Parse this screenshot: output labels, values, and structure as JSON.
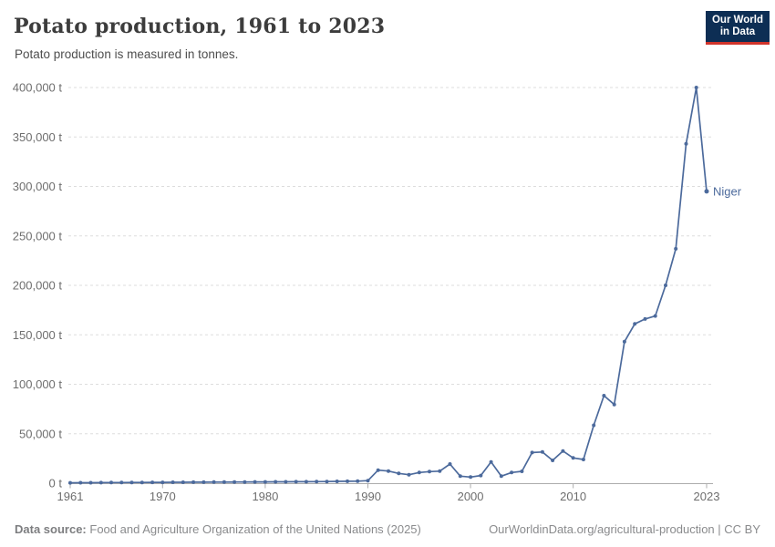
{
  "header": {
    "title": "Potato production, 1961 to 2023",
    "subtitle": "Potato production is measured in tonnes.",
    "logo": {
      "line1": "Our World",
      "line2": "in Data",
      "bg_color": "#0d2e54",
      "accent_color": "#d1342b"
    }
  },
  "chart_data": {
    "type": "line",
    "title": "Potato production, 1961 to 2023",
    "unit": "tonnes",
    "xlabel": "",
    "ylabel": "",
    "xlim": [
      1961,
      2023
    ],
    "ylim": [
      0,
      400000
    ],
    "grid": "horizontal-dashed",
    "legend_position": "end-of-line-label",
    "x_ticks": [
      {
        "value": 1961,
        "label": "1961"
      },
      {
        "value": 1970,
        "label": "1970"
      },
      {
        "value": 1980,
        "label": "1980"
      },
      {
        "value": 1990,
        "label": "1990"
      },
      {
        "value": 2000,
        "label": "2000"
      },
      {
        "value": 2010,
        "label": "2010"
      },
      {
        "value": 2023,
        "label": "2023"
      }
    ],
    "y_ticks": [
      {
        "value": 0,
        "label": "0 t"
      },
      {
        "value": 50000,
        "label": "50,000 t"
      },
      {
        "value": 100000,
        "label": "100,000 t"
      },
      {
        "value": 150000,
        "label": "150,000 t"
      },
      {
        "value": 200000,
        "label": "200,000 t"
      },
      {
        "value": 250000,
        "label": "250,000 t"
      },
      {
        "value": 300000,
        "label": "300,000 t"
      },
      {
        "value": 350000,
        "label": "350,000 t"
      },
      {
        "value": 400000,
        "label": "400,000 t"
      }
    ],
    "series": [
      {
        "name": "Niger",
        "color": "#4C6A9C",
        "x": [
          1961,
          1962,
          1963,
          1964,
          1965,
          1966,
          1967,
          1968,
          1969,
          1970,
          1971,
          1972,
          1973,
          1974,
          1975,
          1976,
          1977,
          1978,
          1979,
          1980,
          1981,
          1982,
          1983,
          1984,
          1985,
          1986,
          1987,
          1988,
          1989,
          1990,
          1991,
          1992,
          1993,
          1994,
          1995,
          1996,
          1997,
          1998,
          1999,
          2000,
          2001,
          2002,
          2003,
          2004,
          2005,
          2006,
          2007,
          2008,
          2009,
          2010,
          2011,
          2012,
          2013,
          2014,
          2015,
          2016,
          2017,
          2018,
          2019,
          2020,
          2021,
          2022,
          2023
        ],
        "values": [
          400,
          450,
          500,
          550,
          600,
          650,
          700,
          750,
          800,
          850,
          900,
          950,
          1000,
          1000,
          1100,
          1100,
          1200,
          1200,
          1300,
          1300,
          1400,
          1400,
          1500,
          1500,
          1600,
          1700,
          1800,
          1900,
          2000,
          2600,
          13200,
          12300,
          9900,
          8600,
          10800,
          11700,
          12200,
          19400,
          7100,
          6200,
          7700,
          21500,
          7100,
          10800,
          12000,
          31000,
          31500,
          23000,
          32500,
          25500,
          24000,
          58500,
          88500,
          79500,
          143000,
          161000,
          166000,
          169000,
          200000,
          237000,
          343000,
          400000,
          295000
        ]
      }
    ],
    "colors": {
      "line": "#4C6A9C",
      "grid": "#dddddd",
      "axis": "#adadad",
      "tick_text": "#6e6e6e"
    }
  },
  "footer": {
    "source_label": "Data source:",
    "source_text": "Food and Agriculture Organization of the United Nations (2025)",
    "link": "OurWorldinData.org/agricultural-production | CC BY"
  }
}
